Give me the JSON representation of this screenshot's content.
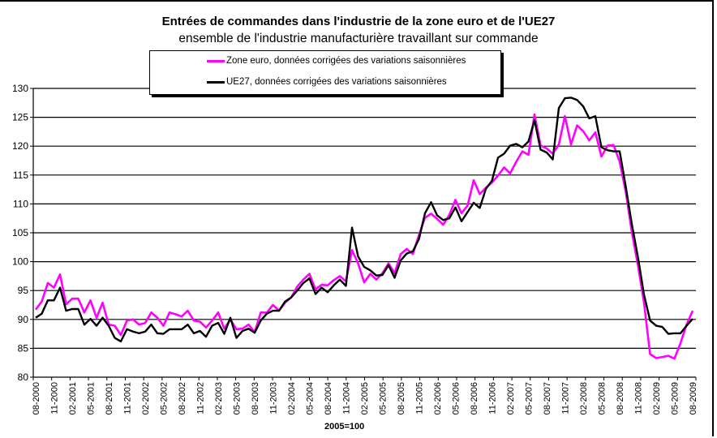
{
  "chart_data": {
    "type": "line",
    "title": "Entrées de commandes dans l'industrie de la zone euro et de l'UE27",
    "subtitle": "ensemble de l'industrie manufacturière travaillant sur commande",
    "xlabel": "2005=100",
    "ylabel": "",
    "ylim": [
      80,
      130
    ],
    "yticks": [
      "80",
      "85",
      "90",
      "95",
      "100",
      "105",
      "110",
      "115",
      "120",
      "125",
      "130"
    ],
    "grid": true,
    "legend_placement": "top-center",
    "x_start": "08-2000",
    "x_end": "08-2009",
    "x_frequency": "monthly",
    "xtick_labels": [
      "08-2000",
      "11-2000",
      "02-2001",
      "05-2001",
      "08-2001",
      "11-2001",
      "02-2002",
      "05-2002",
      "08-2002",
      "11-2002",
      "02-2003",
      "05-2003",
      "08-2003",
      "11-2003",
      "02-2004",
      "05-2004",
      "08-2004",
      "11-2004",
      "02-2005",
      "05-2005",
      "08-2005",
      "11-2005",
      "02-2006",
      "05-2006",
      "08-2006",
      "11-2006",
      "02-2007",
      "05-2007",
      "08-2007",
      "11-2007",
      "02-2008",
      "05-2008",
      "08-2008",
      "11-2008",
      "02-2009",
      "05-2009",
      "08-2009"
    ],
    "series": [
      {
        "name": "Zone euro, données corrigées des variations saisonnières",
        "color": "#ff00ff",
        "values": [
          91.7,
          93.1,
          96.3,
          95.5,
          97.8,
          92.6,
          93.6,
          93.6,
          91.2,
          93.3,
          90.3,
          92.9,
          89.1,
          88.9,
          87.3,
          89.8,
          90.0,
          89.1,
          89.4,
          91.2,
          90.3,
          88.9,
          91.2,
          90.9,
          90.5,
          91.5,
          89.8,
          89.6,
          88.6,
          89.8,
          91.2,
          88.4,
          90.0,
          88.3,
          88.4,
          89.1,
          87.8,
          91.2,
          91.2,
          92.5,
          91.5,
          92.9,
          93.8,
          95.7,
          96.9,
          97.9,
          95.2,
          96.0,
          95.9,
          96.8,
          97.5,
          96.6,
          102.0,
          99.7,
          96.4,
          97.9,
          96.9,
          98.0,
          99.7,
          98.0,
          101.3,
          102.2,
          101.3,
          104.6,
          107.6,
          108.3,
          107.4,
          106.4,
          108.1,
          110.7,
          108.4,
          109.7,
          114.1,
          111.7,
          112.8,
          113.7,
          114.9,
          116.3,
          115.3,
          117.3,
          119.1,
          118.5,
          125.5,
          120.1,
          119.6,
          118.7,
          120.3,
          125.2,
          120.3,
          123.6,
          122.6,
          121.0,
          122.4,
          118.2,
          120.1,
          120.2,
          117.3,
          112.1,
          105.1,
          99.4,
          92.9,
          84.0,
          83.3,
          83.5,
          83.7,
          83.2,
          85.9,
          89.1,
          91.5
        ]
      },
      {
        "name": "UE27, données corrigées des variations saisonnières",
        "color": "#000000",
        "values": [
          90.3,
          91.0,
          93.3,
          93.3,
          95.5,
          91.5,
          91.8,
          91.8,
          89.1,
          90.1,
          88.9,
          90.3,
          88.9,
          86.8,
          86.2,
          88.3,
          87.9,
          87.6,
          87.9,
          89.1,
          87.6,
          87.5,
          88.3,
          88.3,
          88.3,
          89.1,
          87.6,
          88.0,
          87.0,
          88.9,
          89.4,
          87.5,
          90.3,
          86.8,
          88.0,
          88.4,
          87.7,
          89.8,
          91.0,
          91.5,
          91.5,
          93.1,
          93.8,
          95.0,
          96.3,
          97.1,
          94.4,
          95.5,
          94.7,
          95.9,
          96.9,
          95.8,
          105.9,
          100.9,
          99.1,
          98.5,
          97.6,
          97.7,
          99.4,
          97.2,
          100.2,
          101.4,
          101.8,
          103.9,
          108.4,
          110.3,
          108.0,
          107.2,
          107.5,
          109.4,
          107.0,
          108.6,
          110.2,
          109.3,
          112.6,
          114.0,
          118.0,
          118.7,
          120.1,
          120.4,
          119.8,
          120.8,
          124.5,
          119.4,
          118.9,
          117.7,
          126.6,
          128.3,
          128.4,
          128.0,
          126.9,
          124.8,
          125.2,
          119.8,
          119.3,
          119.1,
          119.1,
          113.0,
          106.5,
          100.8,
          94.3,
          89.8,
          88.9,
          88.7,
          87.5,
          87.6,
          87.6,
          88.9,
          90.1
        ]
      }
    ]
  }
}
